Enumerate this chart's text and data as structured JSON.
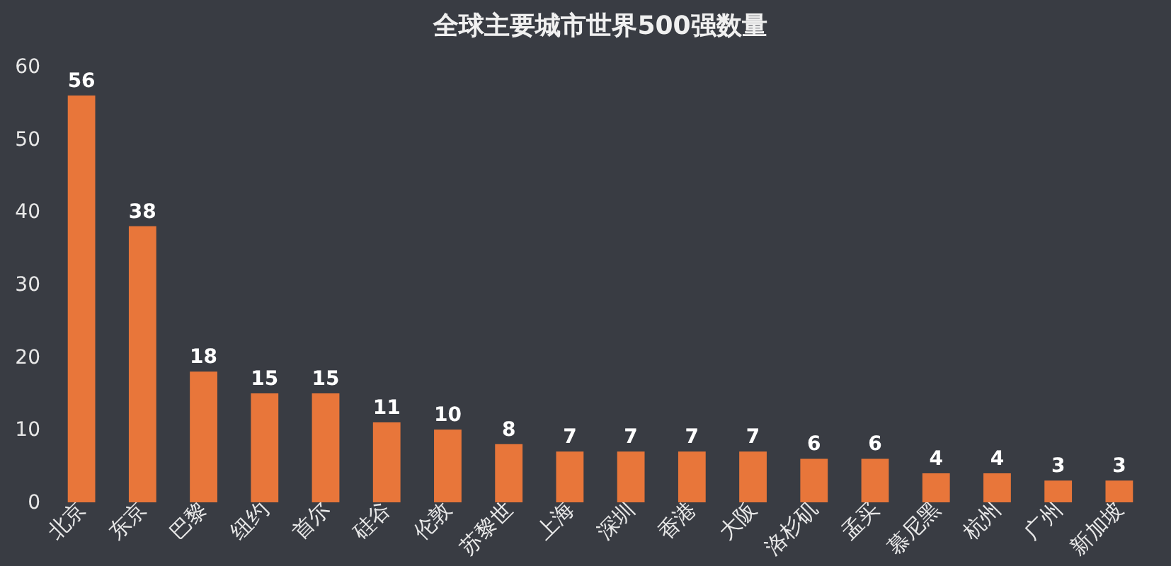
{
  "chart_data": {
    "type": "bar",
    "title": "全球主要城市世界500强数量",
    "categories": [
      "北京",
      "东京",
      "巴黎",
      "纽约",
      "首尔",
      "硅谷",
      "伦敦",
      "苏黎世",
      "上海",
      "深圳",
      "香港",
      "大阪",
      "洛杉矶",
      "孟买",
      "慕尼黑",
      "杭州",
      "广州",
      "新加坡"
    ],
    "values": [
      56,
      38,
      18,
      15,
      15,
      11,
      10,
      8,
      7,
      7,
      7,
      7,
      6,
      6,
      4,
      4,
      3,
      3
    ],
    "color": "#e8763a",
    "ylim": [
      0,
      60
    ],
    "yticks": [
      0,
      10,
      20,
      30,
      40,
      50,
      60
    ],
    "data_labels": true
  }
}
